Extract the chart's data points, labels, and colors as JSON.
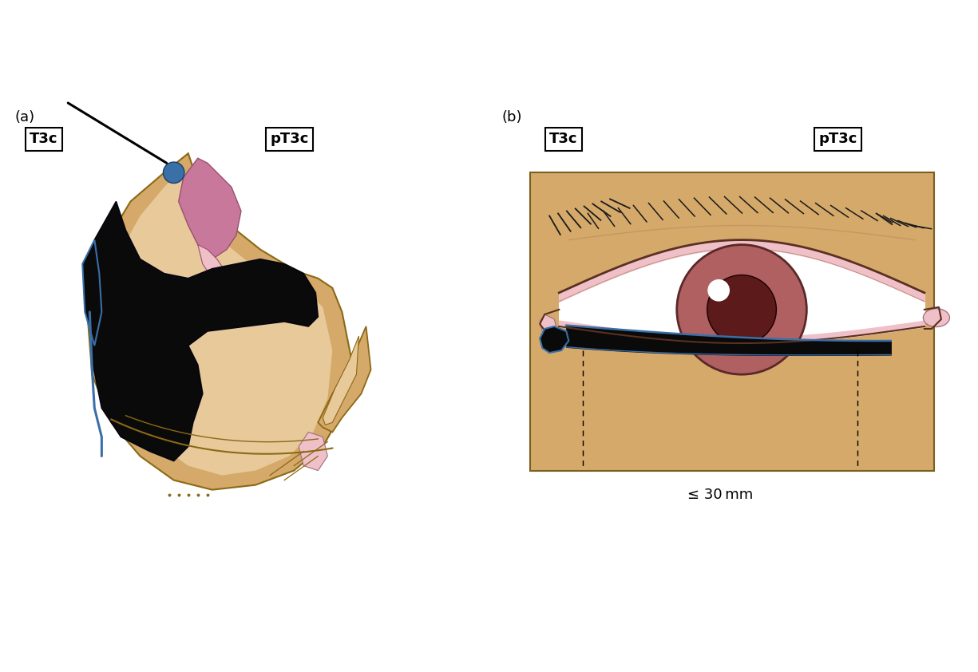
{
  "fig_width": 12.25,
  "fig_height": 8.42,
  "background": "#ffffff",
  "skin_color": "#D4A96A",
  "skin_light": "#E8C99A",
  "skin_outline": "#8B6914",
  "pink_color": "#C8789A",
  "light_pink": "#F0C0C8",
  "tumor_color": "#0a0a0a",
  "blue_color": "#3A6FA8",
  "dark_brown": "#5C1A1A",
  "iris_color": "#B06060",
  "label_a": "(a)",
  "label_b": "(b)",
  "box_T3c": "T3c",
  "box_pT3c": "pT3c",
  "measurement_label": "≤ 30 mm"
}
